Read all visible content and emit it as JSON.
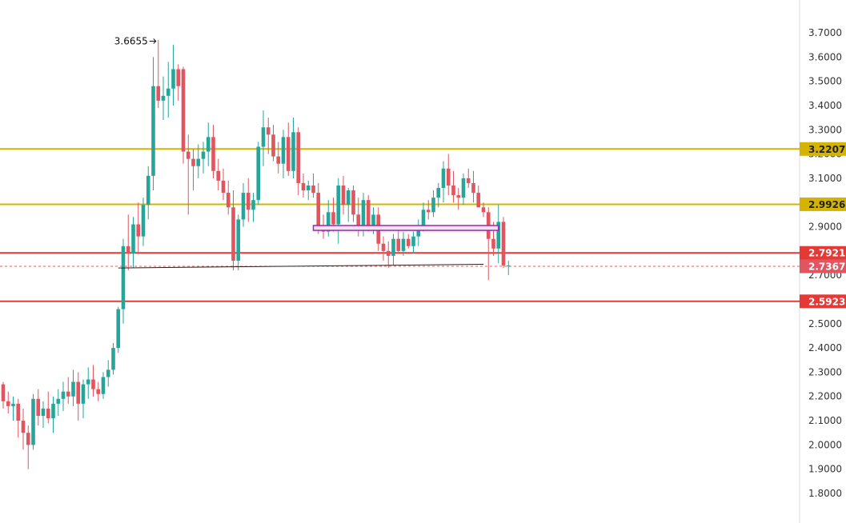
{
  "chart_data": {
    "type": "candlestick",
    "title": "",
    "xlabel": "",
    "ylabel": "",
    "ylim": [
      1.8,
      3.7
    ],
    "y_ticks": [
      "1.8000",
      "1.9000",
      "2.0000",
      "2.1000",
      "2.2000",
      "2.3000",
      "2.4000",
      "2.5000",
      "2.7000",
      "2.9000",
      "3.1000",
      "3.2000",
      "3.3000",
      "3.4000",
      "3.5000",
      "3.6000",
      "3.7000"
    ],
    "grid": false,
    "colors": {
      "up": "#26a69a",
      "down": "#e0555f",
      "gold": "#d4b400",
      "red": "#e53935",
      "purple": "#9c27b0",
      "axis": "#dddddd"
    },
    "annotation": {
      "label": "3.6655",
      "value": 3.6655,
      "arrow": "right-arrow"
    },
    "current_price": {
      "label": "2.7367",
      "value": 2.7367
    },
    "levels": [
      {
        "label": "3.2207",
        "value": 3.2207,
        "color": "gold"
      },
      {
        "label": "2.9926",
        "value": 2.9926,
        "color": "gold"
      },
      {
        "label": "2.7921",
        "value": 2.7921,
        "color": "red"
      },
      {
        "label": "2.5923",
        "value": 2.5923,
        "color": "red"
      }
    ],
    "trendline": {
      "from": [
        23,
        2.73
      ],
      "to": [
        96,
        2.745
      ]
    },
    "zone": {
      "from": 62,
      "to": 99,
      "top": 2.905,
      "bottom": 2.885
    },
    "candles": [
      [
        2.25,
        2.26,
        2.15,
        2.18
      ],
      [
        2.18,
        2.22,
        2.13,
        2.16
      ],
      [
        2.16,
        2.2,
        2.1,
        2.17
      ],
      [
        2.17,
        2.19,
        2.03,
        2.1
      ],
      [
        2.1,
        2.15,
        1.98,
        2.05
      ],
      [
        2.05,
        2.08,
        1.9,
        2.0
      ],
      [
        2.0,
        2.21,
        1.98,
        2.19
      ],
      [
        2.19,
        2.23,
        2.08,
        2.12
      ],
      [
        2.12,
        2.18,
        2.07,
        2.15
      ],
      [
        2.15,
        2.22,
        2.09,
        2.11
      ],
      [
        2.11,
        2.2,
        2.05,
        2.17
      ],
      [
        2.17,
        2.23,
        2.12,
        2.19
      ],
      [
        2.19,
        2.26,
        2.14,
        2.22
      ],
      [
        2.22,
        2.28,
        2.17,
        2.2
      ],
      [
        2.2,
        2.31,
        2.16,
        2.26
      ],
      [
        2.26,
        2.3,
        2.1,
        2.17
      ],
      [
        2.17,
        2.27,
        2.11,
        2.25
      ],
      [
        2.25,
        2.32,
        2.19,
        2.27
      ],
      [
        2.27,
        2.33,
        2.2,
        2.23
      ],
      [
        2.23,
        2.26,
        2.18,
        2.21
      ],
      [
        2.21,
        2.3,
        2.19,
        2.28
      ],
      [
        2.28,
        2.35,
        2.24,
        2.31
      ],
      [
        2.31,
        2.42,
        2.29,
        2.4
      ],
      [
        2.4,
        2.57,
        2.38,
        2.56
      ],
      [
        2.56,
        2.85,
        2.5,
        2.82
      ],
      [
        2.82,
        2.95,
        2.72,
        2.79
      ],
      [
        2.79,
        2.94,
        2.73,
        2.91
      ],
      [
        2.91,
        3.0,
        2.79,
        2.86
      ],
      [
        2.86,
        3.02,
        2.82,
        2.99
      ],
      [
        2.99,
        3.15,
        2.93,
        3.11
      ],
      [
        3.11,
        3.6,
        3.05,
        3.48
      ],
      [
        3.48,
        3.67,
        3.39,
        3.42
      ],
      [
        3.42,
        3.52,
        3.34,
        3.44
      ],
      [
        3.44,
        3.58,
        3.35,
        3.47
      ],
      [
        3.47,
        3.65,
        3.4,
        3.55
      ],
      [
        3.55,
        3.57,
        3.42,
        3.48
      ],
      [
        3.55,
        3.56,
        3.16,
        3.21
      ],
      [
        3.21,
        3.28,
        2.95,
        3.18
      ],
      [
        3.18,
        3.22,
        3.05,
        3.15
      ],
      [
        3.15,
        3.24,
        3.1,
        3.18
      ],
      [
        3.18,
        3.25,
        3.12,
        3.21
      ],
      [
        3.21,
        3.33,
        3.15,
        3.27
      ],
      [
        3.27,
        3.32,
        3.1,
        3.13
      ],
      [
        3.13,
        3.18,
        3.05,
        3.09
      ],
      [
        3.09,
        3.14,
        3.01,
        3.04
      ],
      [
        3.04,
        3.09,
        2.95,
        2.98
      ],
      [
        2.98,
        3.05,
        2.72,
        2.76
      ],
      [
        2.76,
        2.95,
        2.72,
        2.93
      ],
      [
        2.93,
        3.08,
        2.9,
        3.04
      ],
      [
        3.04,
        3.1,
        2.92,
        2.97
      ],
      [
        2.97,
        3.04,
        2.92,
        3.01
      ],
      [
        3.01,
        3.25,
        2.99,
        3.23
      ],
      [
        3.23,
        3.38,
        3.15,
        3.31
      ],
      [
        3.31,
        3.35,
        3.2,
        3.28
      ],
      [
        3.28,
        3.32,
        3.17,
        3.19
      ],
      [
        3.19,
        3.25,
        3.12,
        3.16
      ],
      [
        3.16,
        3.3,
        3.1,
        3.27
      ],
      [
        3.27,
        3.33,
        3.11,
        3.13
      ],
      [
        3.13,
        3.35,
        3.1,
        3.29
      ],
      [
        3.29,
        3.31,
        3.03,
        3.08
      ],
      [
        3.08,
        3.12,
        3.02,
        3.05
      ],
      [
        3.05,
        3.09,
        3.01,
        3.07
      ],
      [
        3.07,
        3.12,
        3.02,
        3.04
      ],
      [
        3.04,
        3.08,
        2.87,
        2.9
      ],
      [
        2.9,
        2.95,
        2.85,
        2.88
      ],
      [
        2.88,
        3.01,
        2.86,
        2.96
      ],
      [
        2.96,
        3.02,
        2.88,
        2.91
      ],
      [
        2.91,
        3.1,
        2.83,
        3.07
      ],
      [
        3.07,
        3.11,
        2.95,
        2.99
      ],
      [
        2.99,
        3.06,
        2.92,
        3.05
      ],
      [
        3.05,
        3.07,
        2.92,
        2.95
      ],
      [
        2.95,
        3.02,
        2.86,
        2.89
      ],
      [
        2.89,
        3.04,
        2.86,
        3.01
      ],
      [
        3.01,
        3.03,
        2.88,
        2.9
      ],
      [
        2.9,
        2.98,
        2.87,
        2.95
      ],
      [
        2.95,
        2.98,
        2.8,
        2.83
      ],
      [
        2.83,
        2.86,
        2.76,
        2.8
      ],
      [
        2.8,
        2.84,
        2.73,
        2.78
      ],
      [
        2.78,
        2.87,
        2.74,
        2.85
      ],
      [
        2.85,
        2.89,
        2.79,
        2.8
      ],
      [
        2.8,
        2.88,
        2.78,
        2.85
      ],
      [
        2.85,
        2.87,
        2.81,
        2.82
      ],
      [
        2.82,
        2.88,
        2.79,
        2.86
      ],
      [
        2.86,
        2.93,
        2.82,
        2.9
      ],
      [
        2.9,
        3.0,
        2.88,
        2.97
      ],
      [
        2.97,
        3.01,
        2.93,
        2.96
      ],
      [
        2.96,
        3.05,
        2.94,
        3.02
      ],
      [
        3.02,
        3.08,
        2.98,
        3.06
      ],
      [
        3.06,
        3.17,
        3.0,
        3.14
      ],
      [
        3.14,
        3.2,
        3.03,
        3.07
      ],
      [
        3.07,
        3.13,
        3.0,
        3.03
      ],
      [
        3.03,
        3.06,
        2.97,
        3.02
      ],
      [
        3.02,
        3.12,
        2.99,
        3.1
      ],
      [
        3.1,
        3.14,
        3.06,
        3.08
      ],
      [
        3.08,
        3.13,
        3.0,
        3.04
      ],
      [
        3.04,
        3.07,
        2.99,
        2.98
      ],
      [
        2.98,
        3.0,
        2.94,
        2.96
      ],
      [
        2.96,
        2.98,
        2.68,
        2.85
      ],
      [
        2.85,
        2.92,
        2.78,
        2.81
      ],
      [
        2.81,
        2.99,
        2.75,
        2.92
      ],
      [
        2.92,
        2.94,
        2.73,
        2.74
      ],
      [
        2.74,
        2.76,
        2.7,
        2.74
      ]
    ]
  }
}
